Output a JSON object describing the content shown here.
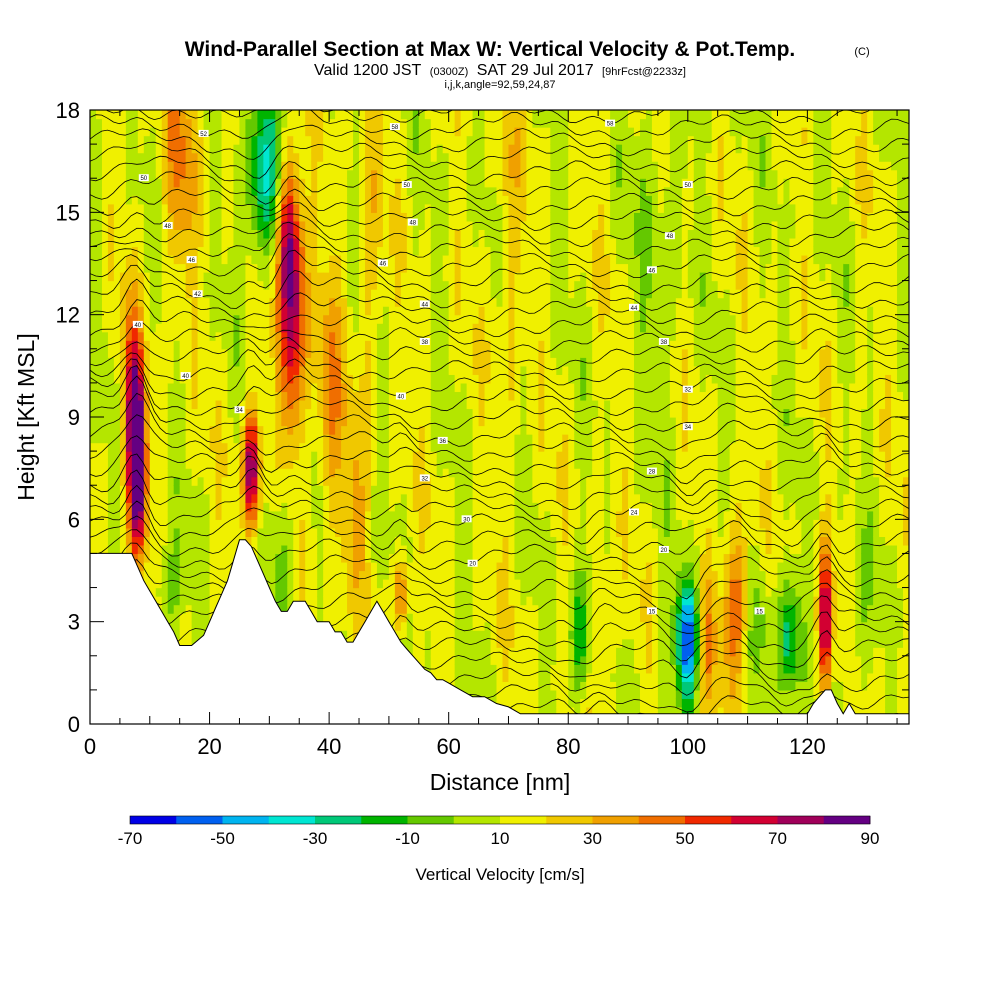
{
  "chart_data": {
    "type": "heatmap",
    "title": "Wind-Parallel Section at Max W: Vertical Velocity & Pot.Temp.",
    "copyright_mark": "(C)",
    "subtitle": {
      "valid": "Valid 1200 JST",
      "utc": "(0300Z)",
      "date": "SAT 29 Jul 2017",
      "forecast": "[9hrFcst@2233z]"
    },
    "subtitle2": "i,j,k,angle=92,59,24,87",
    "xlabel": "Distance [nm]",
    "ylabel": "Height [Kft MSL]",
    "xlim": [
      0,
      137
    ],
    "ylim": [
      0,
      18
    ],
    "x_ticks": [
      "0",
      "20",
      "40",
      "60",
      "80",
      "100",
      "120"
    ],
    "y_ticks": [
      "0",
      "3",
      "6",
      "9",
      "12",
      "15",
      "18"
    ],
    "colorbar": {
      "title": "Vertical Velocity [cm/s]",
      "labels": [
        "-70",
        "-50",
        "-30",
        "-10",
        "10",
        "30",
        "50",
        "70",
        "90"
      ],
      "colors": [
        "#0000e6",
        "#0060f0",
        "#00b4f0",
        "#00e6d2",
        "#00c878",
        "#00b400",
        "#64c800",
        "#b4e600",
        "#f0f000",
        "#f0c800",
        "#f0a000",
        "#f06e00",
        "#f02800",
        "#d20032",
        "#a0005a",
        "#640082"
      ]
    },
    "terrain_profile": {
      "x": [
        0,
        7,
        8,
        9,
        10,
        11,
        12,
        13,
        14,
        15,
        17,
        19,
        20,
        21,
        22,
        23,
        24,
        25,
        26,
        27,
        28,
        29,
        30,
        31,
        32,
        33,
        34,
        36,
        37,
        38,
        39,
        40,
        41,
        42,
        43,
        44,
        45,
        46,
        47,
        48,
        49,
        50,
        51,
        52,
        53,
        54,
        55,
        56,
        57,
        58,
        59,
        60,
        62,
        63,
        64,
        66,
        68,
        70,
        72,
        75,
        120,
        121,
        122,
        123,
        124,
        125,
        126,
        127,
        128,
        137
      ],
      "height": [
        5.0,
        5.0,
        4.6,
        4.2,
        3.9,
        3.6,
        3.3,
        3.0,
        2.7,
        2.3,
        2.3,
        2.6,
        3.0,
        3.4,
        3.8,
        4.2,
        4.8,
        5.4,
        5.4,
        5.2,
        4.8,
        4.4,
        4.0,
        3.6,
        3.3,
        3.3,
        3.6,
        3.6,
        3.3,
        3.0,
        3.0,
        3.0,
        2.7,
        2.7,
        2.4,
        2.4,
        2.7,
        3.0,
        3.3,
        3.6,
        3.3,
        3.0,
        2.7,
        2.4,
        2.2,
        2.0,
        1.8,
        1.6,
        1.5,
        1.3,
        1.3,
        1.2,
        1.0,
        0.9,
        0.8,
        0.8,
        0.6,
        0.5,
        0.3,
        0.3,
        0.3,
        0.6,
        0.8,
        1.0,
        1.0,
        0.6,
        0.3,
        0.6,
        0.3,
        0.3
      ]
    },
    "w_features": [
      {
        "x": 8,
        "z": 7.5,
        "w": 85,
        "sx": 1.0,
        "sz": 1.8
      },
      {
        "x": 7,
        "z": 9.5,
        "w": 45,
        "sx": 1.2,
        "sz": 2.0
      },
      {
        "x": 15,
        "z": 16.5,
        "w": 25,
        "sx": 2.0,
        "sz": 2.5
      },
      {
        "x": 27,
        "z": 7.5,
        "w": 70,
        "sx": 1.0,
        "sz": 1.2
      },
      {
        "x": 29,
        "z": 16.0,
        "w": -45,
        "sx": 2.0,
        "sz": 1.8
      },
      {
        "x": 34,
        "z": 12.0,
        "w": 62,
        "sx": 1.6,
        "sz": 2.4
      },
      {
        "x": 33,
        "z": 14.5,
        "w": 40,
        "sx": 1.3,
        "sz": 1.5
      },
      {
        "x": 40,
        "z": 9.5,
        "w": 28,
        "sx": 1.5,
        "sz": 2.5
      },
      {
        "x": 44,
        "z": 6.0,
        "w": 20,
        "sx": 1.5,
        "sz": 2.0
      },
      {
        "x": 52,
        "z": 3.8,
        "w": 45,
        "sx": 0.8,
        "sz": 0.8
      },
      {
        "x": 13,
        "z": 4.0,
        "w": -20,
        "sx": 2.0,
        "sz": 1.0
      },
      {
        "x": 32,
        "z": 5.0,
        "w": -20,
        "sx": 1.5,
        "sz": 1.5
      },
      {
        "x": 47,
        "z": 13.5,
        "w": 15,
        "sx": 1.5,
        "sz": 3.0
      },
      {
        "x": 82,
        "z": 2.5,
        "w": -32,
        "sx": 1.2,
        "sz": 1.3
      },
      {
        "x": 86,
        "z": 2.5,
        "w": 20,
        "sx": 1.0,
        "sz": 1.5
      },
      {
        "x": 100,
        "z": 2.5,
        "w": -72,
        "sx": 1.4,
        "sz": 1.2
      },
      {
        "x": 103,
        "z": 2.5,
        "w": 25,
        "sx": 1.2,
        "sz": 1.5
      },
      {
        "x": 108,
        "z": 3.5,
        "w": 40,
        "sx": 1.5,
        "sz": 1.6
      },
      {
        "x": 112,
        "z": 3.0,
        "w": -15,
        "sx": 1.5,
        "sz": 1.5
      },
      {
        "x": 117,
        "z": 2.5,
        "w": -40,
        "sx": 1.3,
        "sz": 1.3
      },
      {
        "x": 123,
        "z": 3.0,
        "w": 65,
        "sx": 0.8,
        "sz": 1.5
      },
      {
        "x": 128,
        "z": 3.0,
        "w": -12,
        "sx": 2.0,
        "sz": 1.5
      },
      {
        "x": 70,
        "z": 14.0,
        "w": 14,
        "sx": 1.5,
        "sz": 4.0
      },
      {
        "x": 95,
        "z": 15.0,
        "w": -10,
        "sx": 3.0,
        "sz": 4.0
      }
    ],
    "theta_contour_labels": [
      {
        "x": 19,
        "z": 17.3,
        "text": "52"
      },
      {
        "x": 51,
        "z": 17.5,
        "text": "58"
      },
      {
        "x": 87,
        "z": 17.6,
        "text": "58"
      },
      {
        "x": 9,
        "z": 16.0,
        "text": "50"
      },
      {
        "x": 53,
        "z": 15.8,
        "text": "50"
      },
      {
        "x": 100,
        "z": 15.8,
        "text": "50"
      },
      {
        "x": 13,
        "z": 14.6,
        "text": "48"
      },
      {
        "x": 54,
        "z": 14.7,
        "text": "48"
      },
      {
        "x": 97,
        "z": 14.3,
        "text": "48"
      },
      {
        "x": 17,
        "z": 13.6,
        "text": "46"
      },
      {
        "x": 49,
        "z": 13.5,
        "text": "46"
      },
      {
        "x": 94,
        "z": 13.3,
        "text": "46"
      },
      {
        "x": 18,
        "z": 12.6,
        "text": "42"
      },
      {
        "x": 56,
        "z": 12.3,
        "text": "44"
      },
      {
        "x": 91,
        "z": 12.2,
        "text": "44"
      },
      {
        "x": 8,
        "z": 11.7,
        "text": "40"
      },
      {
        "x": 56,
        "z": 11.2,
        "text": "38"
      },
      {
        "x": 96,
        "z": 11.2,
        "text": "38"
      },
      {
        "x": 16,
        "z": 10.2,
        "text": "40"
      },
      {
        "x": 52,
        "z": 9.6,
        "text": "40"
      },
      {
        "x": 100,
        "z": 9.8,
        "text": "32"
      },
      {
        "x": 25,
        "z": 9.2,
        "text": "34"
      },
      {
        "x": 59,
        "z": 8.3,
        "text": "36"
      },
      {
        "x": 100,
        "z": 8.7,
        "text": "34"
      },
      {
        "x": 56,
        "z": 7.2,
        "text": "32"
      },
      {
        "x": 94,
        "z": 7.4,
        "text": "28"
      },
      {
        "x": 63,
        "z": 6.0,
        "text": "30"
      },
      {
        "x": 91,
        "z": 6.2,
        "text": "24"
      },
      {
        "x": 96,
        "z": 5.1,
        "text": "20"
      },
      {
        "x": 64,
        "z": 4.7,
        "text": "20"
      },
      {
        "x": 94,
        "z": 3.3,
        "text": "15"
      },
      {
        "x": 112,
        "z": 3.3,
        "text": "15"
      }
    ]
  }
}
